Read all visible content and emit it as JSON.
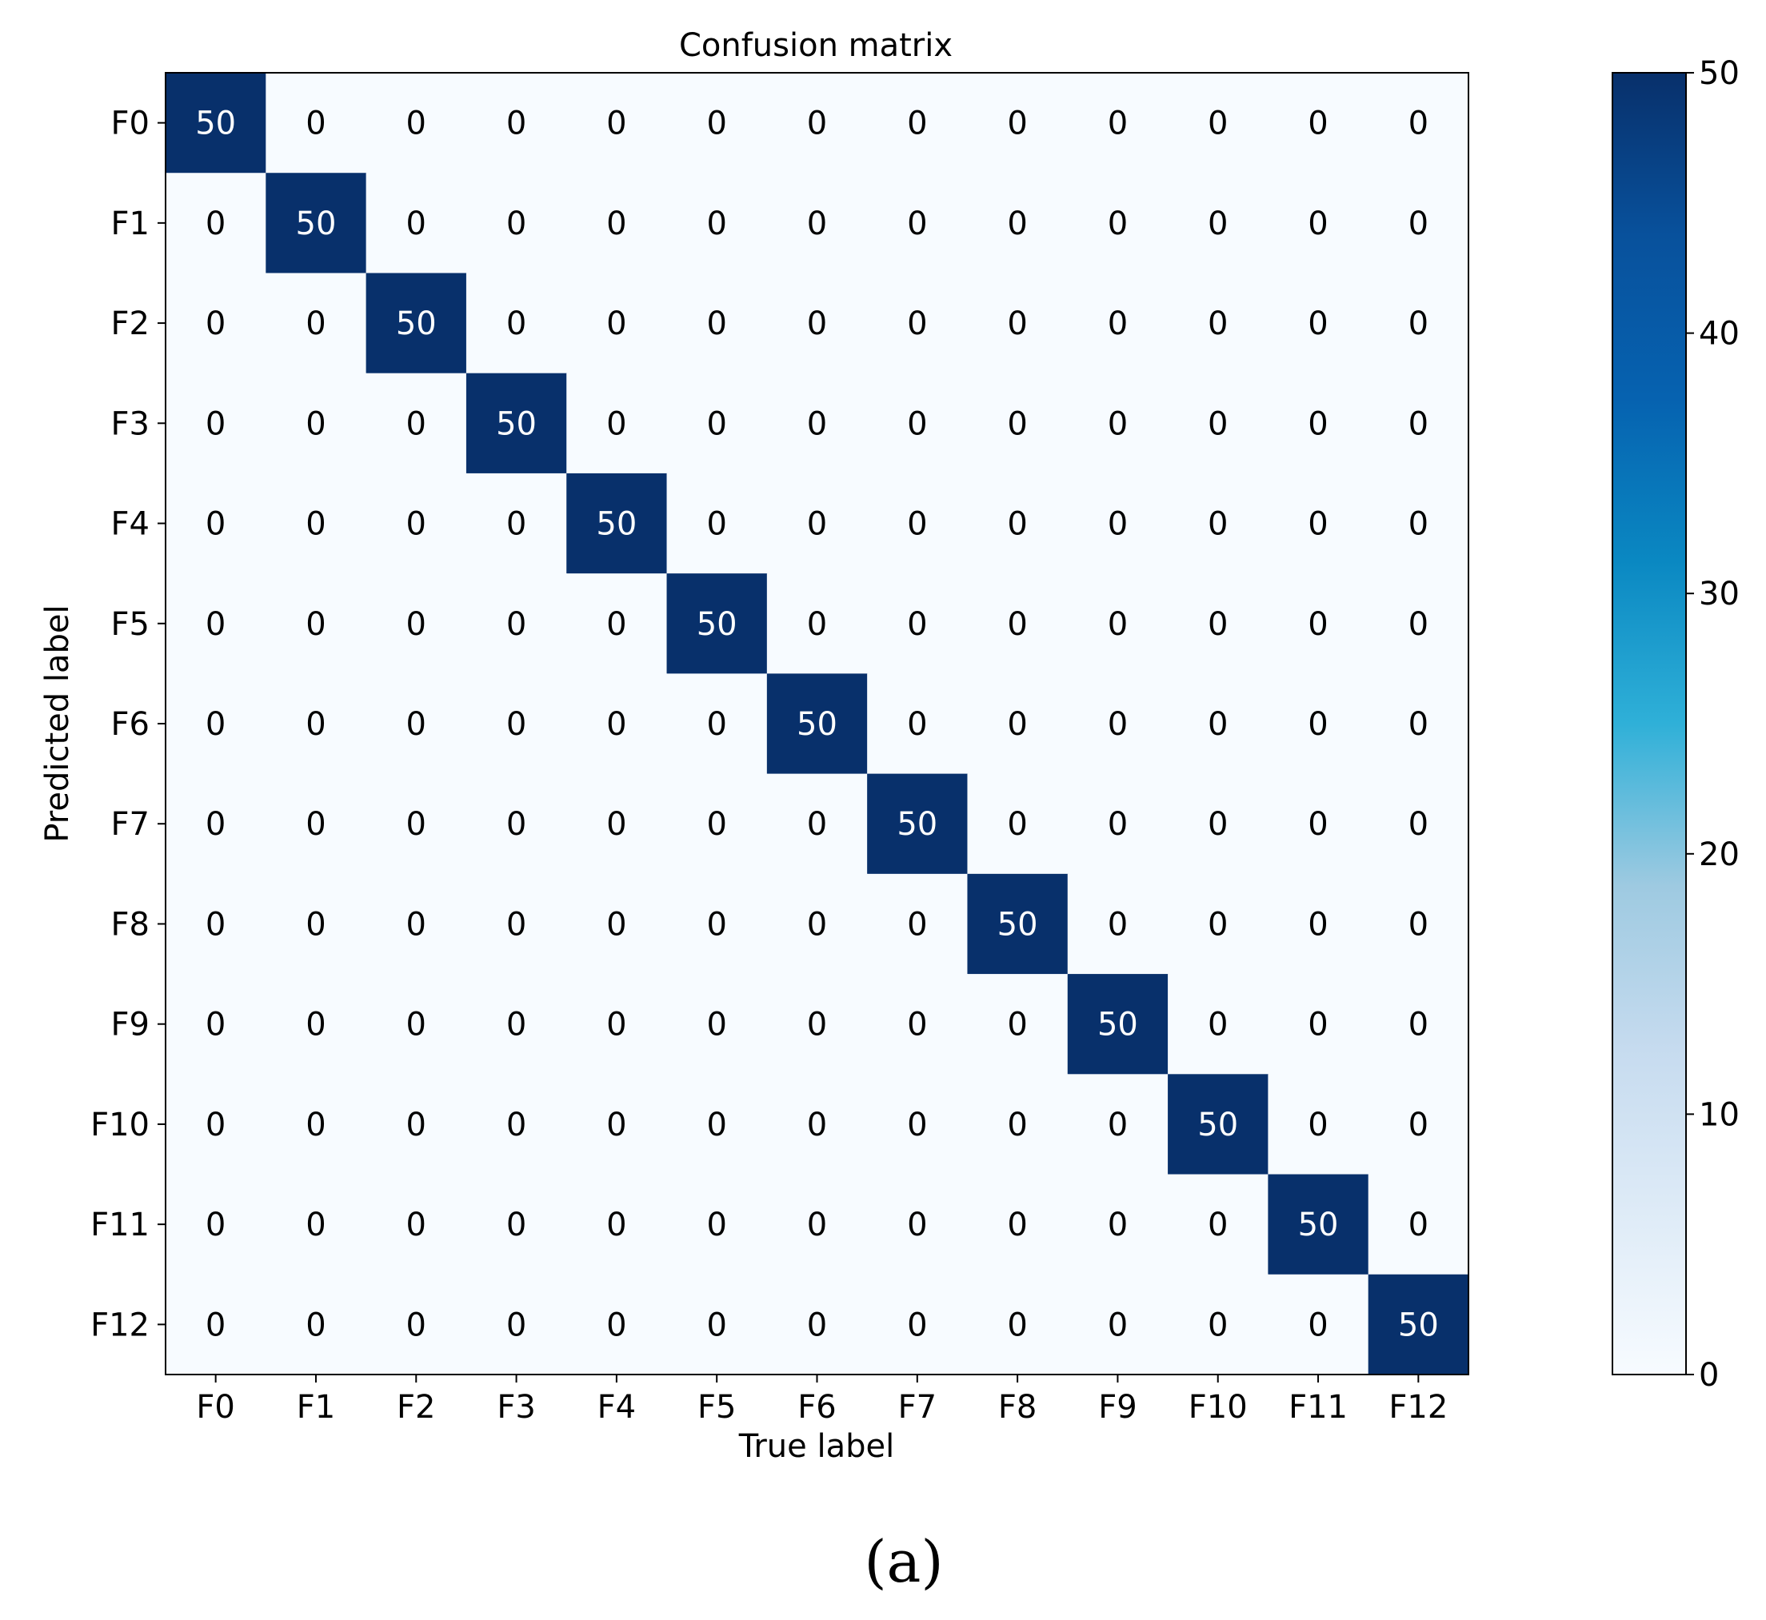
{
  "chart_data": {
    "type": "heatmap",
    "title": "Confusion matrix",
    "xlabel": "True label",
    "ylabel": "Predicted label",
    "x_categories": [
      "F0",
      "F1",
      "F2",
      "F3",
      "F4",
      "F5",
      "F6",
      "F7",
      "F8",
      "F9",
      "F10",
      "F11",
      "F12"
    ],
    "y_categories": [
      "F0",
      "F1",
      "F2",
      "F3",
      "F4",
      "F5",
      "F6",
      "F7",
      "F8",
      "F9",
      "F10",
      "F11",
      "F12"
    ],
    "values": [
      [
        50,
        0,
        0,
        0,
        0,
        0,
        0,
        0,
        0,
        0,
        0,
        0,
        0
      ],
      [
        0,
        50,
        0,
        0,
        0,
        0,
        0,
        0,
        0,
        0,
        0,
        0,
        0
      ],
      [
        0,
        0,
        50,
        0,
        0,
        0,
        0,
        0,
        0,
        0,
        0,
        0,
        0
      ],
      [
        0,
        0,
        0,
        50,
        0,
        0,
        0,
        0,
        0,
        0,
        0,
        0,
        0
      ],
      [
        0,
        0,
        0,
        0,
        50,
        0,
        0,
        0,
        0,
        0,
        0,
        0,
        0
      ],
      [
        0,
        0,
        0,
        0,
        0,
        50,
        0,
        0,
        0,
        0,
        0,
        0,
        0
      ],
      [
        0,
        0,
        0,
        0,
        0,
        0,
        50,
        0,
        0,
        0,
        0,
        0,
        0
      ],
      [
        0,
        0,
        0,
        0,
        0,
        0,
        0,
        50,
        0,
        0,
        0,
        0,
        0
      ],
      [
        0,
        0,
        0,
        0,
        0,
        0,
        0,
        0,
        50,
        0,
        0,
        0,
        0
      ],
      [
        0,
        0,
        0,
        0,
        0,
        0,
        0,
        0,
        0,
        50,
        0,
        0,
        0
      ],
      [
        0,
        0,
        0,
        0,
        0,
        0,
        0,
        0,
        0,
        0,
        50,
        0,
        0
      ],
      [
        0,
        0,
        0,
        0,
        0,
        0,
        0,
        0,
        0,
        0,
        0,
        50,
        0
      ],
      [
        0,
        0,
        0,
        0,
        0,
        0,
        0,
        0,
        0,
        0,
        0,
        0,
        50
      ]
    ],
    "colorbar": {
      "range": [
        0,
        50
      ],
      "ticks": [
        0,
        10,
        20,
        30,
        40,
        50
      ],
      "colormap": "Blues",
      "color_low": "#f7fbff",
      "color_high": "#08306b"
    },
    "text_color_light": "#ffffff",
    "text_color_dark": "#000000"
  },
  "panel_label": "(a)"
}
